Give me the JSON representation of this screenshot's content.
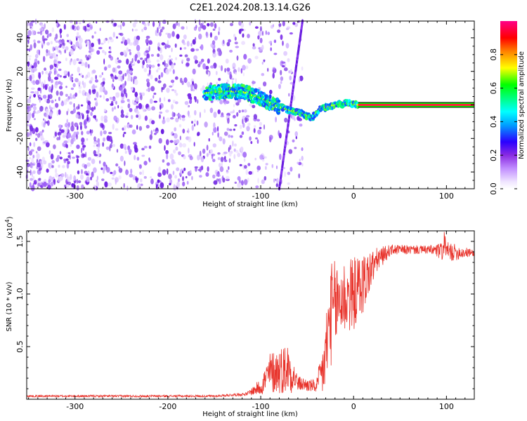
{
  "title": "C2E1.2024.208.13.14.G26",
  "chart_data": [
    {
      "type": "heatmap",
      "xlabel": "Height of straight line (km)",
      "ylabel": "Frequency (Hz)",
      "xlim": [
        -352,
        130
      ],
      "ylim": [
        -50,
        50
      ],
      "xticks": [
        -300,
        -200,
        -100,
        0,
        100
      ],
      "xtick_labels": [
        "-300",
        "-200",
        "-100",
        "0",
        "100"
      ],
      "yticks": [
        40,
        20,
        0,
        -20,
        -40
      ],
      "ytick_labels": [
        "40",
        "20",
        "0",
        "-20",
        "-40"
      ],
      "grid": false,
      "colorbar": {
        "label": "Normalized spectral amplitude",
        "range": [
          0,
          1
        ],
        "ticks": [
          0.0,
          0.2,
          0.4,
          0.6,
          0.8
        ],
        "tick_labels": [
          "0.0",
          "0.2",
          "0.4",
          "0.6",
          "0.8"
        ],
        "colors": [
          "#ffffff",
          "#e0ccff",
          "#8a2be2",
          "#0000ff",
          "#00ffff",
          "#00ff00",
          "#ffff00",
          "#ff0000",
          "#ff0088"
        ]
      },
      "features": {
        "scatter_region_x": [
          -352,
          -55
        ],
        "scatter_region_y": [
          -50,
          50
        ],
        "scatter_amplitude": 0.3,
        "signal_track": [
          {
            "x": -160,
            "y": 7
          },
          {
            "x": -140,
            "y": 8
          },
          {
            "x": -120,
            "y": 8
          },
          {
            "x": -100,
            "y": 4
          },
          {
            "x": -85,
            "y": 0
          },
          {
            "x": -70,
            "y": -3
          },
          {
            "x": -55,
            "y": -5
          },
          {
            "x": -45,
            "y": -8
          },
          {
            "x": -35,
            "y": -2
          },
          {
            "x": -20,
            "y": 0
          },
          {
            "x": -5,
            "y": 1
          },
          {
            "x": 5,
            "y": 0
          },
          {
            "x": 130,
            "y": 0
          }
        ],
        "diagonal_line": [
          {
            "x": -80,
            "y": -50
          },
          {
            "x": -55,
            "y": 50
          }
        ],
        "strong_tone_start_x": 5,
        "strong_tone_freq": 0
      }
    },
    {
      "type": "line",
      "xlabel": "Height of straight line (km)",
      "ylabel": "SNR (10 * v/v)",
      "scale_label": "(x10",
      "scale_exponent": "4",
      "scale_close": ")",
      "xlim": [
        -352,
        130
      ],
      "ylim": [
        0,
        1.6
      ],
      "xticks": [
        -300,
        -200,
        -100,
        0,
        100
      ],
      "xtick_labels": [
        "-300",
        "-200",
        "-100",
        "0",
        "100"
      ],
      "yticks": [
        0.5,
        1.0,
        1.5
      ],
      "ytick_labels": [
        "0.5",
        "1.0",
        "1.5"
      ],
      "grid": false,
      "series": [
        {
          "color": "#e8332b",
          "envelope": [
            {
              "x": -352,
              "y": 0.03,
              "noise": 0.01
            },
            {
              "x": -150,
              "y": 0.03,
              "noise": 0.01
            },
            {
              "x": -115,
              "y": 0.05,
              "noise": 0.015
            },
            {
              "x": -100,
              "y": 0.12,
              "noise": 0.08
            },
            {
              "x": -90,
              "y": 0.25,
              "noise": 0.2
            },
            {
              "x": -70,
              "y": 0.3,
              "noise": 0.25
            },
            {
              "x": -60,
              "y": 0.15,
              "noise": 0.07
            },
            {
              "x": -40,
              "y": 0.12,
              "noise": 0.06
            },
            {
              "x": -32,
              "y": 0.3,
              "noise": 0.3
            },
            {
              "x": -25,
              "y": 0.8,
              "noise": 0.5
            },
            {
              "x": -15,
              "y": 0.95,
              "noise": 0.4
            },
            {
              "x": 0,
              "y": 1.0,
              "noise": 0.35
            },
            {
              "x": 10,
              "y": 1.1,
              "noise": 0.3
            },
            {
              "x": 25,
              "y": 1.32,
              "noise": 0.12
            },
            {
              "x": 40,
              "y": 1.42,
              "noise": 0.05
            },
            {
              "x": 80,
              "y": 1.42,
              "noise": 0.04
            },
            {
              "x": 100,
              "y": 1.4,
              "noise": 0.1
            },
            {
              "x": 130,
              "y": 1.39,
              "noise": 0.03
            }
          ]
        }
      ]
    }
  ]
}
